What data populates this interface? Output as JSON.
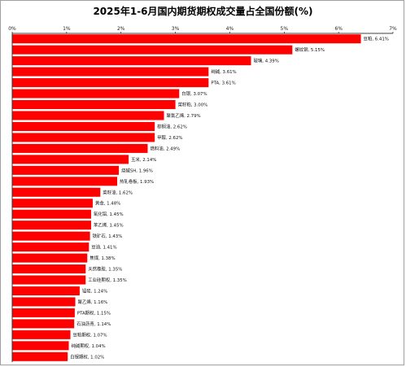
{
  "chart_data": {
    "type": "bar",
    "orientation": "horizontal",
    "title": "2025年1-6月国内期货期权成交量占全国份额(%)",
    "xlabel": "",
    "ylabel": "",
    "xlim": [
      0,
      7
    ],
    "xticks": [
      "0%",
      "1%",
      "2%",
      "3%",
      "4%",
      "5%",
      "6%",
      "7%"
    ],
    "grid": false,
    "bar_color": "#ff0000",
    "categories": [
      "豆粕",
      "螺纹钢",
      "玻璃",
      "纯碱",
      "PTA",
      "白银",
      "菜籽粕",
      "聚氯乙烯",
      "棕榈油",
      "甲醇",
      "燃料油",
      "玉米",
      "烧碱SH",
      "热轧卷板",
      "菜籽油",
      "黄金",
      "氧化铝",
      "苯乙烯",
      "铁矿石",
      "豆油",
      "焦煤",
      "天然橡胶",
      "工业硅期权",
      "锰硅",
      "聚乙烯",
      "PTA期权",
      "石油沥青",
      "豆粕期权",
      "纯碱期权",
      "白银期权"
    ],
    "values": [
      6.41,
      5.15,
      4.39,
      3.61,
      3.61,
      3.07,
      3.0,
      2.79,
      2.62,
      2.62,
      2.49,
      2.14,
      1.96,
      1.93,
      1.62,
      1.48,
      1.45,
      1.45,
      1.43,
      1.41,
      1.38,
      1.35,
      1.35,
      1.24,
      1.16,
      1.15,
      1.14,
      1.07,
      1.04,
      1.02
    ],
    "data_labels": [
      "豆粕, 6.41%",
      "螺纹钢, 5.15%",
      "玻璃, 4.39%",
      "纯碱, 3.61%",
      "PTA, 3.61%",
      "白银, 3.07%",
      "菜籽粕, 3.00%",
      "聚氯乙烯, 2.79%",
      "棕榈油, 2.62%",
      "甲醇, 2.62%",
      "燃料油, 2.49%",
      "玉米, 2.14%",
      "烧碱SH, 1.96%",
      "热轧卷板, 1.93%",
      "菜籽油, 1.62%",
      "黄金, 1.48%",
      "氧化铝, 1.45%",
      "苯乙烯, 1.45%",
      "铁矿石, 1.43%",
      "豆油, 1.41%",
      "焦煤, 1.38%",
      "天然橡胶, 1.35%",
      "工业硅期权, 1.35%",
      "锰硅, 1.24%",
      "聚乙烯, 1.16%",
      "PTA期权, 1.15%",
      "石油沥青, 1.14%",
      "豆粕期权, 1.07%",
      "纯碱期权, 1.04%",
      "白银期权, 1.02%"
    ]
  }
}
